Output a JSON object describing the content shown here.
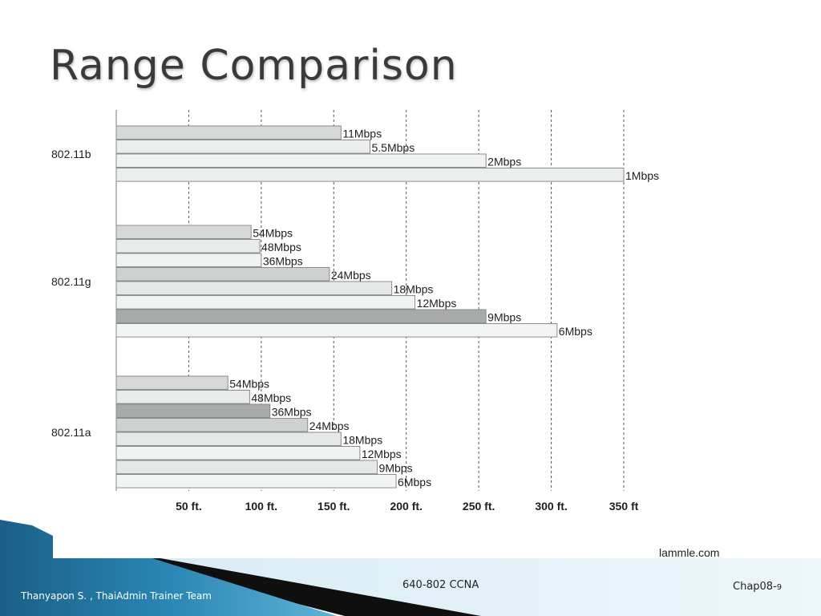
{
  "slide": {
    "title": "Range Comparison",
    "source": "lammle.com",
    "footer_author": "Thanyapon S. , ThaiAdmin Trainer Team",
    "footer_course": "640-802 CCNA",
    "footer_chapter": "Chap08-",
    "footer_page_number": "9"
  },
  "chart_data": {
    "type": "bar",
    "orientation": "horizontal",
    "title": "",
    "xlabel": "",
    "ylabel": "",
    "x_unit": "ft",
    "xlim": [
      0,
      350
    ],
    "x_ticks": [
      {
        "value": 50,
        "label": "50 ft."
      },
      {
        "value": 100,
        "label": "100 ft."
      },
      {
        "value": 150,
        "label": "150 ft."
      },
      {
        "value": 200,
        "label": "200 ft."
      },
      {
        "value": 250,
        "label": "250 ft."
      },
      {
        "value": 300,
        "label": "300 ft."
      },
      {
        "value": 350,
        "label": "350 ft"
      }
    ],
    "grid": "vertical dashed",
    "groups": [
      {
        "name": "802.11b",
        "bars": [
          {
            "label": "11Mbps",
            "value": 155,
            "color": "#d6d8d8"
          },
          {
            "label": "5.5Mbps",
            "value": 175,
            "color": "#ebeded"
          },
          {
            "label": "2Mbps",
            "value": 255,
            "color": "#f1f2f2"
          },
          {
            "label": "1Mbps",
            "value": 350,
            "color": "#eceeee"
          }
        ]
      },
      {
        "name": "802.11g",
        "bars": [
          {
            "label": "54Mbps",
            "value": 93,
            "color": "#d6d8d8"
          },
          {
            "label": "48Mbps",
            "value": 99,
            "color": "#e9ebeb"
          },
          {
            "label": "36Mbps",
            "value": 100,
            "color": "#f1f2f2"
          },
          {
            "label": "24Mbps",
            "value": 147,
            "color": "#cfd1d1"
          },
          {
            "label": "18Mbps",
            "value": 190,
            "color": "#e6e8e8"
          },
          {
            "label": "12Mbps",
            "value": 206,
            "color": "#f1f2f2"
          },
          {
            "label": "9Mbps",
            "value": 255,
            "color": "#a9abab"
          },
          {
            "label": "6Mbps",
            "value": 304,
            "color": "#f3f4f4"
          }
        ]
      },
      {
        "name": "802.11a",
        "bars": [
          {
            "label": "54Mbps",
            "value": 77,
            "color": "#d6d8d8"
          },
          {
            "label": "48Mbps",
            "value": 92,
            "color": "#e9ebeb"
          },
          {
            "label": "36Mbps",
            "value": 106,
            "color": "#a9abab"
          },
          {
            "label": "24Mbps",
            "value": 132,
            "color": "#cfd1d1"
          },
          {
            "label": "18Mbps",
            "value": 155,
            "color": "#e6e8e8"
          },
          {
            "label": "12Mbps",
            "value": 168,
            "color": "#f1f2f2"
          },
          {
            "label": "9Mbps",
            "value": 180,
            "color": "#e6e8e8"
          },
          {
            "label": "6Mbps",
            "value": 193,
            "color": "#f3f4f4"
          }
        ]
      }
    ]
  }
}
